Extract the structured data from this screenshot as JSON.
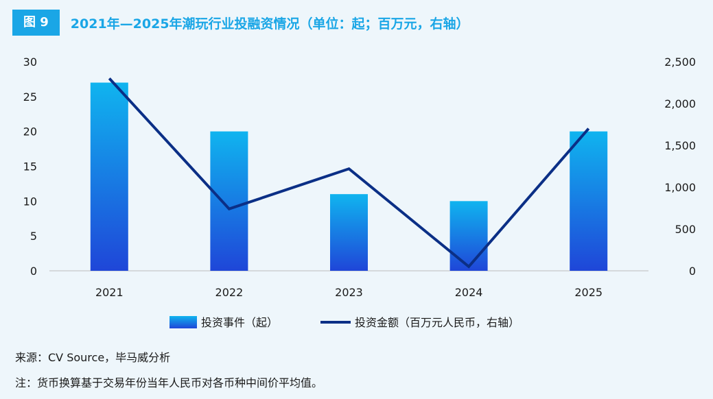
{
  "header": {
    "figure_label": "图 9",
    "title": "2021年—2025年潮玩行业投融资情况（单位：起；百万元，右轴）"
  },
  "chart_data": {
    "type": "bar",
    "categories": [
      "2021",
      "2022",
      "2023",
      "2024",
      "2025"
    ],
    "series": [
      {
        "name": "投资事件（起）",
        "type": "bar",
        "axis": "left",
        "values": [
          27,
          20,
          11,
          10,
          20
        ]
      },
      {
        "name": "投资金额（百万元人民币，右轴）",
        "type": "line",
        "axis": "right",
        "values": [
          2300,
          740,
          1220,
          50,
          1700
        ]
      }
    ],
    "y_left": {
      "min": 0,
      "max": 30,
      "ticks": [
        "0",
        "5",
        "10",
        "15",
        "20",
        "25",
        "30"
      ]
    },
    "y_right": {
      "min": 0,
      "max": 2500,
      "ticks": [
        "0",
        "500",
        "1,000",
        "1,500",
        "2,000",
        "2,500"
      ]
    },
    "grid": false,
    "legend": "bottom",
    "colors": {
      "bar_top": "#10b4ef",
      "bar_bottom": "#1f46d8",
      "line": "#0b2f86",
      "axis": "#bcbcbc"
    }
  },
  "footer": {
    "source": "来源：CV Source，毕马威分析",
    "note": "注：货币换算基于交易年份当年人民币对各币种中间价平均值。"
  }
}
